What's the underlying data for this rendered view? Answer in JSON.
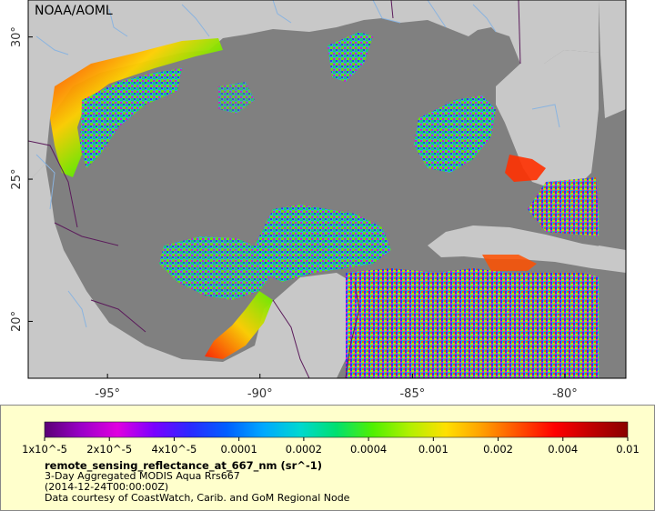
{
  "map": {
    "agency_label": "NOAA/AOML",
    "lat_ticks": [
      {
        "label": "30°",
        "lat": 30
      },
      {
        "label": "25°",
        "lat": 25
      },
      {
        "label": "20°",
        "lat": 20
      }
    ],
    "lon_ticks": [
      {
        "label": "-95°",
        "lon": -95
      },
      {
        "label": "-90°",
        "lon": -90
      },
      {
        "label": "-85°",
        "lon": -85
      },
      {
        "label": "-80°",
        "lon": -80
      }
    ],
    "colors": {
      "water": "#808080",
      "land": "#c8c8c8",
      "rivers": "#8ab4e0",
      "borders": "#5b1b5b",
      "frame": "#000000"
    }
  },
  "legend": {
    "tick_labels": [
      "1x10^-5",
      "2x10^-5",
      "4x10^-5",
      "0.0001",
      "0.0002",
      "0.0004",
      "0.001",
      "0.002",
      "0.004",
      "0.01"
    ],
    "colormap": [
      "#5a0075",
      "#9b00c8",
      "#e000e0",
      "#7a00ff",
      "#2a2aff",
      "#0060ff",
      "#00a8ff",
      "#00d8d0",
      "#00e070",
      "#50f000",
      "#b0f000",
      "#ffe000",
      "#ffa000",
      "#ff5000",
      "#ff0000",
      "#c00000",
      "#8a0000"
    ],
    "title": "remote_sensing_reflectance_at_667_nm (sr^-1)",
    "lines": [
      "3-Day Aggregated MODIS Aqua Rrs667",
      "(2014-12-24T00:00:00Z)",
      "Data courtesy of CoastWatch, Carib. and GoM Regional Node"
    ]
  }
}
